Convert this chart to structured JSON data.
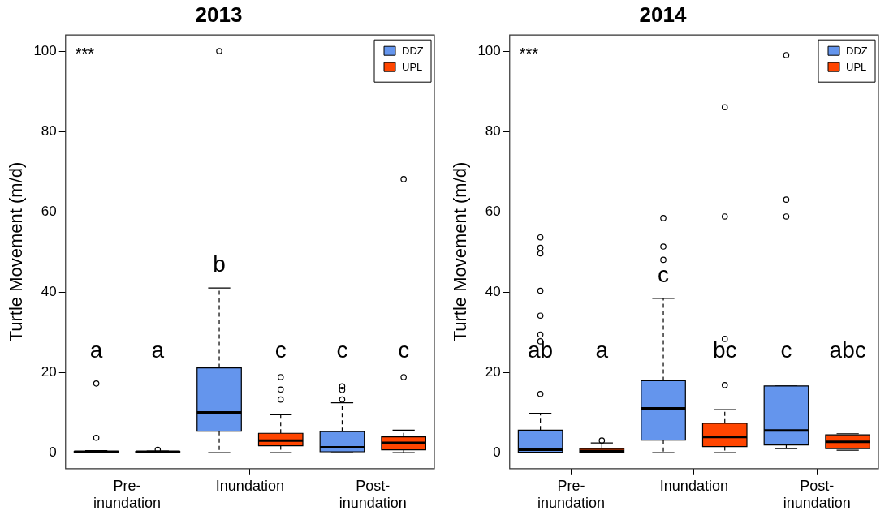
{
  "chart_data": [
    {
      "type": "box",
      "title": "2013",
      "ylabel": "Turtle Movement (m/d)",
      "categories": [
        "Pre-\ninundation",
        "Inundation",
        "Post-\ninundation"
      ],
      "ylim": [
        -4,
        104
      ],
      "yticks": [
        0,
        20,
        40,
        60,
        80,
        100
      ],
      "grid": false,
      "legend": "top right",
      "series": [
        {
          "name": "DDZ",
          "color": "#6495ed",
          "boxes": [
            {
              "low": 0,
              "q1": 0,
              "median": 0.2,
              "q3": 0.3,
              "high": 0.5,
              "outliers": [
                17.2,
                3.7
              ]
            },
            {
              "low": 0,
              "q1": 5.3,
              "median": 10.0,
              "q3": 21.1,
              "high": 41.0,
              "outliers": [
                100
              ]
            },
            {
              "low": 0,
              "q1": 0.2,
              "median": 1.3,
              "q3": 5.2,
              "high": 12.4,
              "outliers": [
                16.5,
                15.6,
                13.2
              ]
            }
          ]
        },
        {
          "name": "UPL",
          "color": "#ff4500",
          "boxes": [
            {
              "low": 0,
              "q1": 0,
              "median": 0.2,
              "q3": 0.3,
              "high": 0.4,
              "outliers": [
                0.7
              ]
            },
            {
              "low": 0,
              "q1": 1.7,
              "median": 3.0,
              "q3": 4.8,
              "high": 9.4,
              "outliers": [
                18.8,
                15.7,
                13.2
              ]
            },
            {
              "low": 0,
              "q1": 0.7,
              "median": 2.4,
              "q3": 3.9,
              "high": 5.6,
              "outliers": [
                18.8,
                68.1
              ]
            }
          ]
        }
      ],
      "annotations": [
        "***",
        "a",
        "a",
        "b",
        "c",
        "c",
        "c"
      ]
    },
    {
      "type": "box",
      "title": "2014",
      "ylabel": "Turtle Movement (m/d)",
      "categories": [
        "Pre-\ninundation",
        "Inundation",
        "Post-\ninundation"
      ],
      "ylim": [
        -4,
        104
      ],
      "yticks": [
        0,
        20,
        40,
        60,
        80,
        100
      ],
      "grid": false,
      "legend": "top right",
      "series": [
        {
          "name": "DDZ",
          "color": "#6495ed",
          "boxes": [
            {
              "low": 0,
              "q1": 0.1,
              "median": 0.7,
              "q3": 5.6,
              "high": 9.8,
              "outliers": [
                14.6,
                27.7,
                29.4,
                34.1,
                40.3,
                49.6,
                51.0,
                53.6
              ]
            },
            {
              "low": 0,
              "q1": 3.1,
              "median": 11.0,
              "q3": 17.9,
              "high": 38.4,
              "outliers": [
                48.0,
                51.3,
                58.4
              ]
            },
            {
              "low": 1.0,
              "q1": 1.9,
              "median": 5.5,
              "q3": 16.6,
              "high": 16.6,
              "outliers": [
                58.8,
                63.0,
                99.0
              ]
            }
          ]
        },
        {
          "name": "UPL",
          "color": "#ff4500",
          "boxes": [
            {
              "low": 0,
              "q1": 0.1,
              "median": 0.4,
              "q3": 1.0,
              "high": 2.4,
              "outliers": [
                3.0
              ]
            },
            {
              "low": 0,
              "q1": 1.5,
              "median": 3.9,
              "q3": 7.3,
              "high": 10.7,
              "outliers": [
                16.8,
                28.3,
                58.8,
                86.0
              ]
            },
            {
              "low": 0.6,
              "q1": 1.0,
              "median": 2.7,
              "q3": 4.4,
              "high": 4.7
            }
          ]
        }
      ],
      "annotations": [
        "***",
        "ab",
        "a",
        "c",
        "bc",
        "c",
        "abc"
      ]
    }
  ]
}
